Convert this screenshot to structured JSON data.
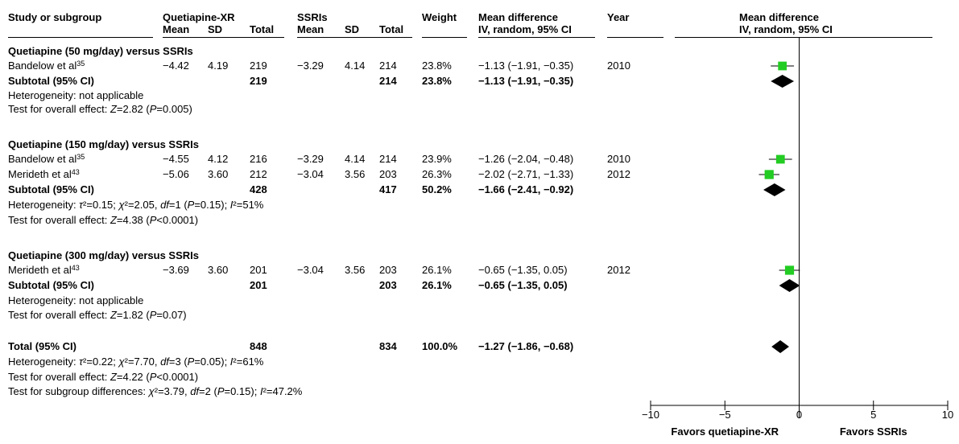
{
  "header": {
    "study": "Study or subgroup",
    "group1": "Quetiapine-XR",
    "group2": "SSRIs",
    "mean": "Mean",
    "sd": "SD",
    "total": "Total",
    "weight": "Weight",
    "md": "Mean difference",
    "md_method": "IV, random, 95% CI",
    "year": "Year",
    "plot_md": "Mean difference",
    "plot_method": "IV, random, 95% CI"
  },
  "rows": [
    {
      "kind": "group",
      "text": "Quetiapine (50 mg/day) versus SSRIs"
    },
    {
      "kind": "study",
      "name": "Bandelow et al",
      "sup": "35",
      "m1": "−4.42",
      "sd1": "4.19",
      "n1": "219",
      "m2": "−3.29",
      "sd2": "4.14",
      "n2": "214",
      "w": "23.8%",
      "ci": "−1.13 (−1.91, −0.35)",
      "year": "2010"
    },
    {
      "kind": "subtotal",
      "name": "Subtotal (95% CI)",
      "n1": "219",
      "n2": "214",
      "w": "23.8%",
      "ci": "−1.13 (−1.91, −0.35)"
    },
    {
      "kind": "note",
      "text": "Heterogeneity: not applicable"
    },
    {
      "kind": "note",
      "text": "Test for overall effect: Z=2.82 (P=0.005)"
    },
    {
      "kind": "group",
      "text": "Quetiapine (150 mg/day) versus SSRIs"
    },
    {
      "kind": "study",
      "name": "Bandelow et al",
      "sup": "35",
      "m1": "−4.55",
      "sd1": "4.12",
      "n1": "216",
      "m2": "−3.29",
      "sd2": "4.14",
      "n2": "214",
      "w": "23.9%",
      "ci": "−1.26 (−2.04, −0.48)",
      "year": "2010"
    },
    {
      "kind": "study",
      "name": "Merideth et al",
      "sup": "43",
      "m1": "−5.06",
      "sd1": "3.60",
      "n1": "212",
      "m2": "−3.04",
      "sd2": "3.56",
      "n2": "203",
      "w": "26.3%",
      "ci": "−2.02 (−2.71, −1.33)",
      "year": "2012"
    },
    {
      "kind": "subtotal",
      "name": "Subtotal (95% CI)",
      "n1": "428",
      "n2": "417",
      "w": "50.2%",
      "ci": "−1.66 (−2.41, −0.92)"
    },
    {
      "kind": "note",
      "text": "Heterogeneity: τ²=0.15; χ²=2.05, df=1 (P=0.15); I²=51%"
    },
    {
      "kind": "note",
      "text": "Test for overall effect: Z=4.38 (P<0.0001)"
    },
    {
      "kind": "group",
      "text": "Quetiapine (300 mg/day) versus SSRIs"
    },
    {
      "kind": "study",
      "name": "Merideth et al",
      "sup": "43",
      "m1": "−3.69",
      "sd1": "3.60",
      "n1": "201",
      "m2": "−3.04",
      "sd2": "3.56",
      "n2": "203",
      "w": "26.1%",
      "ci": "−0.65 (−1.35, 0.05)",
      "year": "2012"
    },
    {
      "kind": "subtotal",
      "name": "Subtotal (95% CI)",
      "n1": "201",
      "n2": "203",
      "w": "26.1%",
      "ci": "−0.65 (−1.35, 0.05)"
    },
    {
      "kind": "note",
      "text": "Heterogeneity: not applicable"
    },
    {
      "kind": "note",
      "text": "Test for overall effect: Z=1.82 (P=0.07)"
    },
    {
      "kind": "subtotal",
      "name": "Total (95% CI)",
      "n1": "848",
      "n2": "834",
      "w": "100.0%",
      "ci": "−1.27 (−1.86, −0.68)"
    },
    {
      "kind": "note",
      "text": "Heterogeneity: τ²=0.22; χ²=7.70, df=3 (P=0.05); I²=61%"
    },
    {
      "kind": "note",
      "text": "Test for overall effect: Z=4.22 (P<0.0001)"
    },
    {
      "kind": "note",
      "text": "Test for subgroup differences: χ²=3.79, df=2 (P=0.15); I²=47.2%"
    }
  ],
  "chart_data": {
    "type": "forest",
    "xlim": [
      -10,
      10
    ],
    "ticks": [
      -10,
      -5,
      0,
      5,
      10
    ],
    "tick_labels": [
      "−10",
      "−5",
      "0",
      "5",
      "10"
    ],
    "favors_left": "Favors quetiapine-XR",
    "favors_right": "Favors SSRIs",
    "study_color": "#22cc22",
    "studies": [
      {
        "name": "Bandelow et al 2010 (50 mg)",
        "mean": -1.13,
        "lo": -1.91,
        "hi": -0.35,
        "weight": 23.8
      },
      {
        "name": "Bandelow et al 2010 (150 mg)",
        "mean": -1.26,
        "lo": -2.04,
        "hi": -0.48,
        "weight": 23.9
      },
      {
        "name": "Merideth et al 2012 (150 mg)",
        "mean": -2.02,
        "lo": -2.71,
        "hi": -1.33,
        "weight": 26.3
      },
      {
        "name": "Merideth et al 2012 (300 mg)",
        "mean": -0.65,
        "lo": -1.35,
        "hi": 0.05,
        "weight": 26.1
      }
    ],
    "diamonds": [
      {
        "name": "Subtotal 50 mg",
        "mean": -1.13,
        "lo": -1.91,
        "hi": -0.35
      },
      {
        "name": "Subtotal 150 mg",
        "mean": -1.66,
        "lo": -2.41,
        "hi": -0.92
      },
      {
        "name": "Subtotal 300 mg",
        "mean": -0.65,
        "lo": -1.35,
        "hi": 0.05
      },
      {
        "name": "Total",
        "mean": -1.27,
        "lo": -1.86,
        "hi": -0.68
      }
    ]
  }
}
